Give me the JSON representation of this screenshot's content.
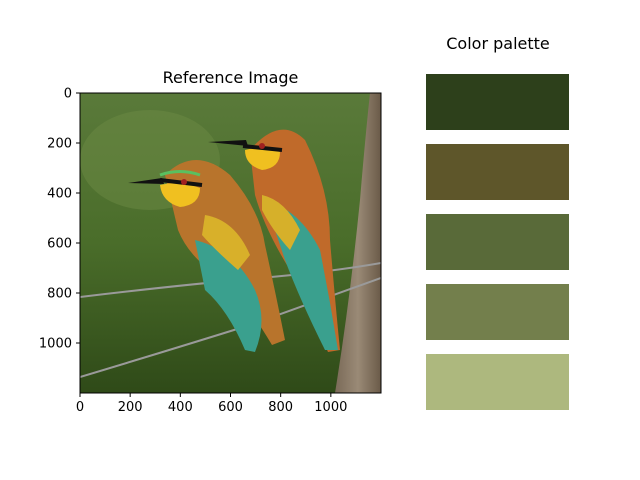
{
  "chart_data": [
    {
      "type": "image",
      "title": "Reference Image",
      "xlabel": "",
      "ylabel": "",
      "xlim": [
        0,
        1200
      ],
      "ylim": [
        1200,
        0
      ],
      "x_ticks": [
        0,
        200,
        400,
        600,
        800,
        1000
      ],
      "y_ticks": [
        0,
        200,
        400,
        600,
        800,
        1000
      ],
      "image_content": "two bee-eater birds perched on barbed wire against a wooden post, green background"
    },
    {
      "type": "palette",
      "title": "Color palette",
      "colors": [
        "#2d401b",
        "#5e562a",
        "#596a39",
        "#737f4c",
        "#adb87e"
      ]
    }
  ]
}
